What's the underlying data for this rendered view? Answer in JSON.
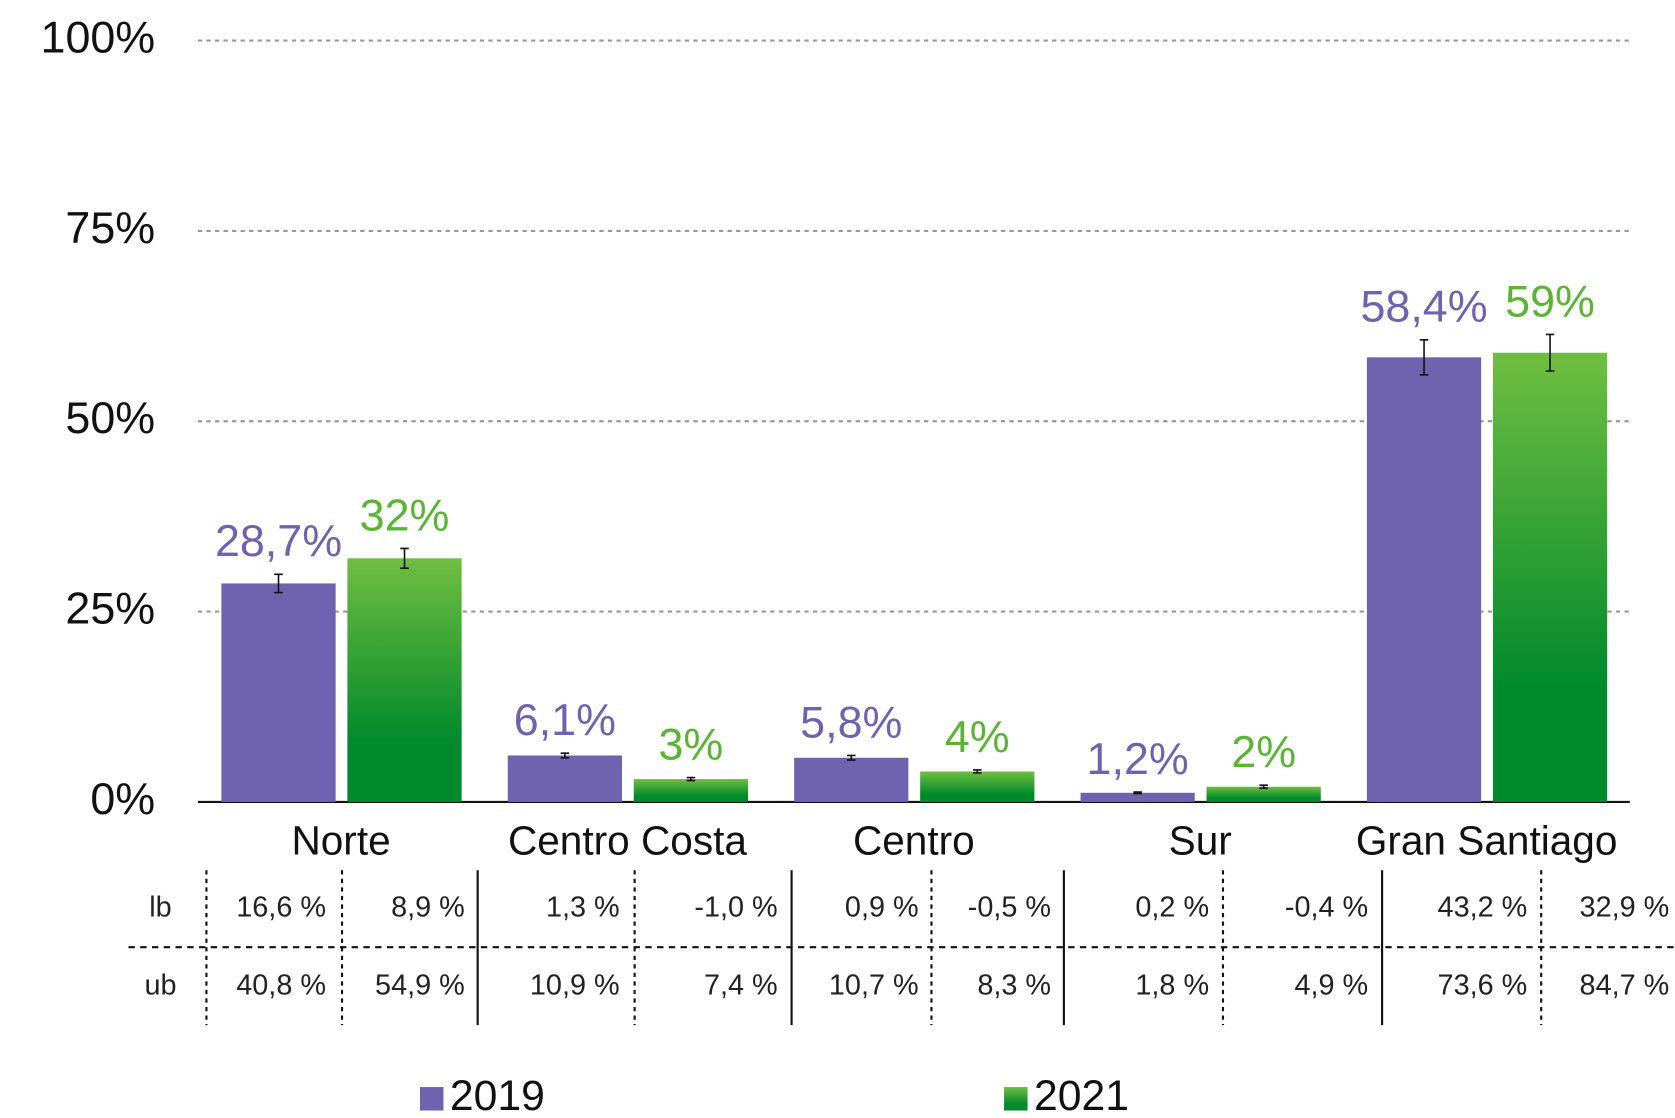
{
  "chart_data": {
    "type": "bar",
    "categories": [
      "Norte",
      "Centro Costa",
      "Centro",
      "Sur",
      "Gran Santiago"
    ],
    "series": [
      {
        "name": "2019",
        "color": "#6f63b0",
        "label_color": "#6f63b0",
        "values": [
          28.7,
          6.1,
          5.8,
          1.2,
          58.4
        ],
        "value_labels": [
          "28,7%",
          "6,1%",
          "5,8%",
          "1,2%",
          "58,4%"
        ],
        "errors": [
          1.2,
          0.3,
          0.3,
          0.1,
          2.3
        ]
      },
      {
        "name": "2021",
        "color": "#3aa83a",
        "gradient": [
          "#70be40",
          "#008a2c"
        ],
        "label_color": "#5ab535",
        "values": [
          32,
          3,
          4,
          2,
          59
        ],
        "value_labels": [
          "32%",
          "3%",
          "4%",
          "2%",
          "59%"
        ],
        "errors": [
          1.3,
          0.2,
          0.2,
          0.2,
          2.4
        ]
      }
    ],
    "ylim": [
      0,
      100
    ],
    "yticks": [
      {
        "value": 0,
        "label": "0%"
      },
      {
        "value": 25,
        "label": "25%"
      },
      {
        "value": 50,
        "label": "50%"
      },
      {
        "value": 75,
        "label": "75%"
      },
      {
        "value": 100,
        "label": "100%"
      }
    ],
    "grid": true,
    "legend": "bottom"
  },
  "table": {
    "row_labels": [
      "lb",
      "ub"
    ],
    "rows": [
      [
        "16,6 %",
        "8,9 %",
        "1,3 %",
        "-1,0 %",
        "0,9 %",
        "-0,5 %",
        "0,2 %",
        "-0,4 %",
        "43,2 %",
        "32,9 %"
      ],
      [
        "40,8 %",
        "54,9 %",
        "10,9 %",
        "7,4 %",
        "10,7 %",
        "8,3 %",
        "1,8 %",
        "4,9 %",
        "73,6 %",
        "84,7 %"
      ]
    ]
  }
}
